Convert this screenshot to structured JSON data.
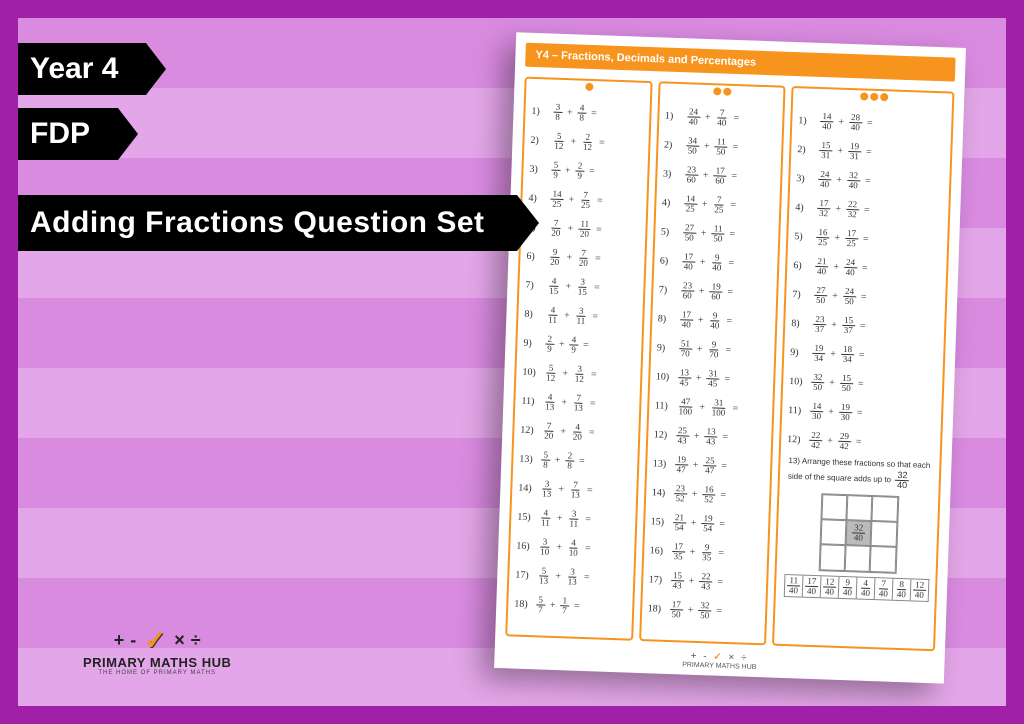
{
  "colors": {
    "frame": "#a020a8",
    "chevron_light": "#e3a6e8",
    "chevron_dark": "#d98be0",
    "tag_bg": "#000000",
    "tag_text": "#ffffff",
    "accent": "#f7941e",
    "sheet_bg": "#ffffff",
    "text": "#333333"
  },
  "tags": {
    "line1": "Year 4",
    "line2": "FDP",
    "line3": "Adding Fractions Question Set"
  },
  "logo": {
    "symbols": [
      "+",
      "-",
      "✓",
      "×",
      "÷"
    ],
    "title": "PRIMARY MATHS HUB",
    "subtitle": "THE HOME OF PRIMARY MATHS"
  },
  "worksheet": {
    "banner": "Y4 – Fractions, Decimals and Percentages",
    "columns": [
      {
        "difficulty_dots": 1,
        "questions": [
          {
            "n": 1,
            "a": [
              3,
              8
            ],
            "b": [
              4,
              8
            ]
          },
          {
            "n": 2,
            "a": [
              5,
              12
            ],
            "b": [
              2,
              12
            ]
          },
          {
            "n": 3,
            "a": [
              5,
              9
            ],
            "b": [
              2,
              9
            ]
          },
          {
            "n": 4,
            "a": [
              14,
              25
            ],
            "b": [
              7,
              25
            ]
          },
          {
            "n": 5,
            "a": [
              7,
              20
            ],
            "b": [
              11,
              20
            ]
          },
          {
            "n": 6,
            "a": [
              9,
              20
            ],
            "b": [
              7,
              20
            ]
          },
          {
            "n": 7,
            "a": [
              4,
              15
            ],
            "b": [
              3,
              15
            ]
          },
          {
            "n": 8,
            "a": [
              4,
              11
            ],
            "b": [
              3,
              11
            ]
          },
          {
            "n": 9,
            "a": [
              2,
              9
            ],
            "b": [
              4,
              9
            ]
          },
          {
            "n": 10,
            "a": [
              5,
              12
            ],
            "b": [
              3,
              12
            ]
          },
          {
            "n": 11,
            "a": [
              4,
              13
            ],
            "b": [
              7,
              13
            ]
          },
          {
            "n": 12,
            "a": [
              7,
              20
            ],
            "b": [
              4,
              20
            ]
          },
          {
            "n": 13,
            "a": [
              5,
              8
            ],
            "b": [
              2,
              8
            ]
          },
          {
            "n": 14,
            "a": [
              3,
              13
            ],
            "b": [
              7,
              13
            ]
          },
          {
            "n": 15,
            "a": [
              4,
              11
            ],
            "b": [
              3,
              11
            ]
          },
          {
            "n": 16,
            "a": [
              3,
              10
            ],
            "b": [
              4,
              10
            ]
          },
          {
            "n": 17,
            "a": [
              5,
              13
            ],
            "b": [
              3,
              13
            ]
          },
          {
            "n": 18,
            "a": [
              5,
              7
            ],
            "b": [
              1,
              7
            ]
          }
        ]
      },
      {
        "difficulty_dots": 2,
        "questions": [
          {
            "n": 1,
            "a": [
              24,
              40
            ],
            "b": [
              7,
              40
            ]
          },
          {
            "n": 2,
            "a": [
              34,
              50
            ],
            "b": [
              11,
              50
            ]
          },
          {
            "n": 3,
            "a": [
              23,
              60
            ],
            "b": [
              17,
              60
            ]
          },
          {
            "n": 4,
            "a": [
              14,
              25
            ],
            "b": [
              7,
              25
            ]
          },
          {
            "n": 5,
            "a": [
              27,
              50
            ],
            "b": [
              11,
              50
            ]
          },
          {
            "n": 6,
            "a": [
              17,
              40
            ],
            "b": [
              9,
              40
            ]
          },
          {
            "n": 7,
            "a": [
              23,
              60
            ],
            "b": [
              19,
              60
            ]
          },
          {
            "n": 8,
            "a": [
              17,
              40
            ],
            "b": [
              9,
              40
            ]
          },
          {
            "n": 9,
            "a": [
              51,
              70
            ],
            "b": [
              9,
              70
            ]
          },
          {
            "n": 10,
            "a": [
              13,
              45
            ],
            "b": [
              31,
              45
            ]
          },
          {
            "n": 11,
            "a": [
              47,
              100
            ],
            "b": [
              31,
              100
            ]
          },
          {
            "n": 12,
            "a": [
              25,
              43
            ],
            "b": [
              13,
              43
            ]
          },
          {
            "n": 13,
            "a": [
              19,
              47
            ],
            "b": [
              25,
              47
            ]
          },
          {
            "n": 14,
            "a": [
              23,
              52
            ],
            "b": [
              16,
              52
            ]
          },
          {
            "n": 15,
            "a": [
              21,
              54
            ],
            "b": [
              19,
              54
            ]
          },
          {
            "n": 16,
            "a": [
              17,
              35
            ],
            "b": [
              9,
              35
            ]
          },
          {
            "n": 17,
            "a": [
              15,
              43
            ],
            "b": [
              22,
              43
            ]
          },
          {
            "n": 18,
            "a": [
              17,
              50
            ],
            "b": [
              32,
              50
            ]
          }
        ]
      },
      {
        "difficulty_dots": 3,
        "questions": [
          {
            "n": 1,
            "a": [
              14,
              40
            ],
            "b": [
              28,
              40
            ]
          },
          {
            "n": 2,
            "a": [
              15,
              31
            ],
            "b": [
              19,
              31
            ]
          },
          {
            "n": 3,
            "a": [
              24,
              40
            ],
            "b": [
              32,
              40
            ]
          },
          {
            "n": 4,
            "a": [
              17,
              32
            ],
            "b": [
              22,
              32
            ]
          },
          {
            "n": 5,
            "a": [
              16,
              25
            ],
            "b": [
              17,
              25
            ]
          },
          {
            "n": 6,
            "a": [
              21,
              40
            ],
            "b": [
              24,
              40
            ]
          },
          {
            "n": 7,
            "a": [
              27,
              50
            ],
            "b": [
              24,
              50
            ]
          },
          {
            "n": 8,
            "a": [
              23,
              37
            ],
            "b": [
              15,
              37
            ]
          },
          {
            "n": 9,
            "a": [
              19,
              34
            ],
            "b": [
              18,
              34
            ]
          },
          {
            "n": 10,
            "a": [
              32,
              50
            ],
            "b": [
              15,
              50
            ]
          },
          {
            "n": 11,
            "a": [
              14,
              30
            ],
            "b": [
              19,
              30
            ]
          },
          {
            "n": 12,
            "a": [
              22,
              42
            ],
            "b": [
              29,
              42
            ]
          }
        ],
        "extra": {
          "number": 13,
          "text": "Arrange these fractions so that each side of the square adds up to",
          "target": [
            32,
            40
          ],
          "center_value": [
            32,
            40
          ],
          "strip": [
            [
              11,
              40
            ],
            [
              17,
              40
            ],
            [
              12,
              40
            ],
            [
              9,
              40
            ],
            [
              4,
              40
            ],
            [
              7,
              40
            ],
            [
              8,
              40
            ],
            [
              12,
              40
            ]
          ]
        }
      }
    ],
    "footer_brand": "PRIMARY MATHS HUB"
  }
}
